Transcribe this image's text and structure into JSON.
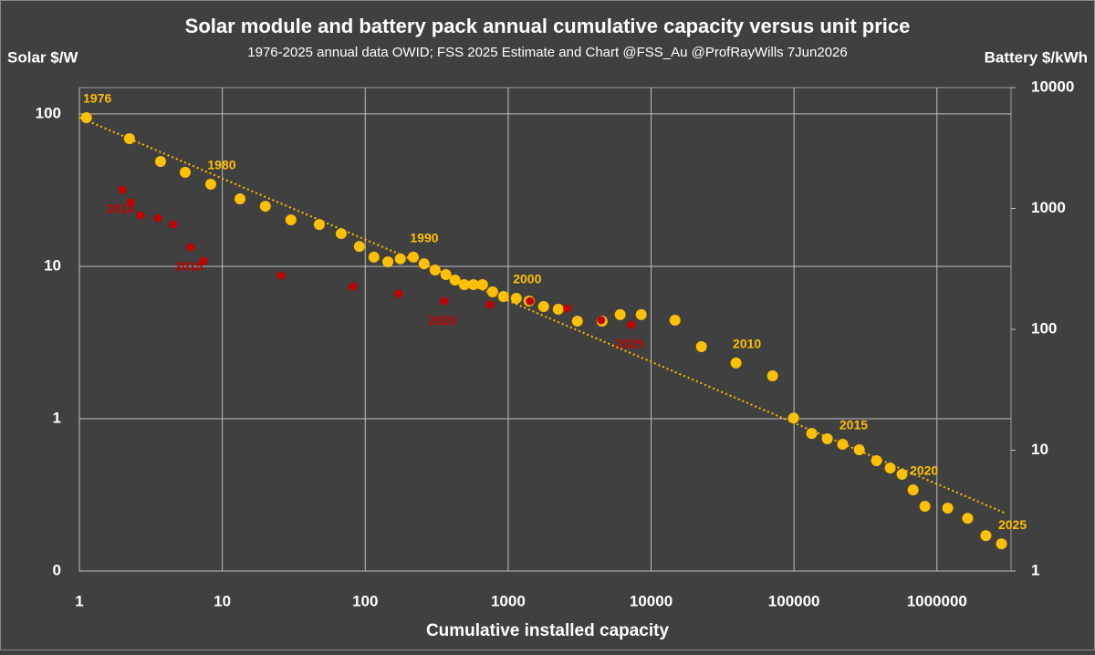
{
  "chart_data": {
    "type": "scatter",
    "title": "Solar module and battery pack annual cumulative capacity versus unit price",
    "subtitle": "1976-2025 annual data OWID;  FSS 2025 Estimate and Chart @FSS_Au @ProfRayWills 7Jun2026",
    "y_label": "Solar $/W",
    "y2_label": "Battery $/kWh",
    "x_label": "Cumulative installed capacity",
    "log_x": true,
    "log_y": true,
    "log_y2": true,
    "grid": true,
    "xlim": [
      1,
      3300000
    ],
    "xticks": [
      1,
      10,
      100,
      1000,
      10000,
      100000,
      1000000
    ],
    "ylim": [
      0.1,
      149
    ],
    "yticks": [
      {
        "value": 0.1,
        "label": "0"
      },
      1,
      10,
      100
    ],
    "y2lim": [
      1,
      10000
    ],
    "y2ticks": [
      1,
      10,
      100,
      1000,
      10000
    ],
    "series": [
      {
        "color": "#ffc000",
        "axis": "y",
        "x": [
          1.12,
          2.24,
          3.7,
          5.5,
          8.3,
          13.3,
          20,
          30.2,
          47.7,
          67.9,
          91,
          115,
          144,
          176,
          217,
          258,
          308,
          367,
          425,
          493,
          571,
          662,
          778,
          927,
          1140,
          1400,
          1770,
          2240,
          3050,
          4540,
          6080,
          8530,
          14700,
          22500,
          39300,
          70800,
          99300,
          133000,
          171000,
          219000,
          286000,
          378000,
          471000,
          570000,
          681000,
          824000,
          1190000,
          1640000,
          2200000,
          2830000
        ],
        "values": [
          94.6,
          68.9,
          48.8,
          41.4,
          34.6,
          27.7,
          24.8,
          20.2,
          18.8,
          16.4,
          13.5,
          11.5,
          10.7,
          11.2,
          11.5,
          10.4,
          9.46,
          8.83,
          8.13,
          7.59,
          7.59,
          7.59,
          6.8,
          6.34,
          6.17,
          5.92,
          5.45,
          5.23,
          4.37,
          4.37,
          4.82,
          4.82,
          4.43,
          2.97,
          2.32,
          1.91,
          1.01,
          0.8,
          0.738,
          0.68,
          0.626,
          0.53,
          0.475,
          0.432,
          0.341,
          0.266,
          0.259,
          0.222,
          0.171,
          0.151
        ],
        "labels": [
          "1976",
          null,
          null,
          null,
          "1980",
          null,
          null,
          null,
          null,
          null,
          null,
          null,
          null,
          null,
          "1990",
          null,
          null,
          null,
          null,
          null,
          null,
          null,
          null,
          null,
          "2000",
          null,
          null,
          null,
          null,
          null,
          null,
          null,
          null,
          null,
          "2010",
          null,
          null,
          null,
          null,
          "2015",
          null,
          null,
          null,
          null,
          "2020",
          null,
          null,
          null,
          null,
          "2025"
        ]
      },
      {
        "color": "#c00000",
        "axis": "y2",
        "x": [
          2.0,
          2.28,
          2.68,
          3.54,
          4.54,
          6.0,
          7.38,
          25.7,
          82,
          171,
          357,
          745,
          1420,
          2590,
          4470,
          7260
        ],
        "values": [
          1428,
          1120,
          878,
          833,
          738,
          478,
          368,
          279,
          226,
          197,
          171,
          160,
          171,
          149,
          119,
          109
        ],
        "labels": [
          "2010",
          null,
          null,
          null,
          null,
          "2015",
          null,
          null,
          null,
          null,
          "2020",
          null,
          null,
          null,
          null,
          "2025"
        ]
      },
      {
        "type": "line",
        "style": "dotted",
        "color": "#ffc000",
        "axis": "y",
        "x": [
          1,
          3000000
        ],
        "values": [
          95,
          0.24
        ]
      }
    ]
  }
}
